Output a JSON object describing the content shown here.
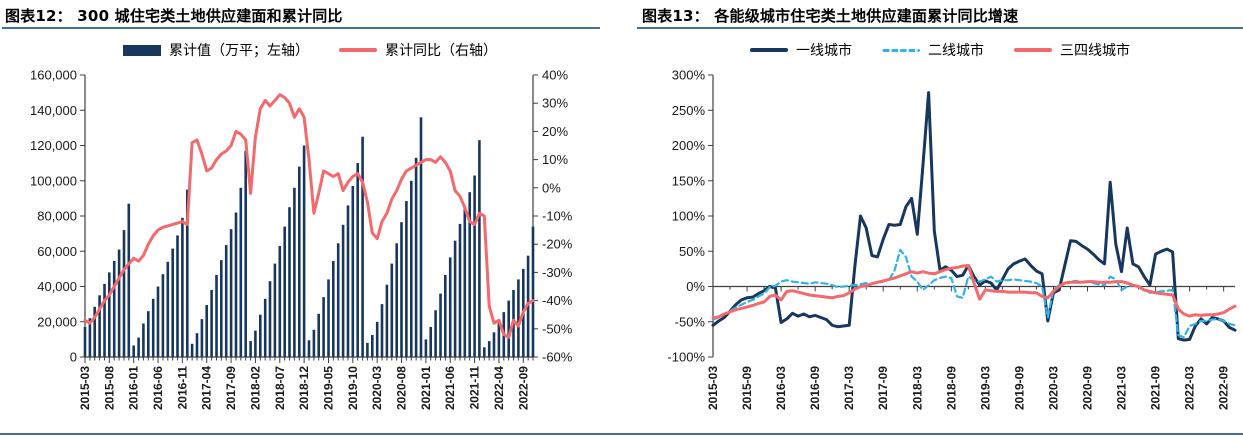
{
  "page": {
    "bottom_rule_color": "#41719c",
    "accent_rule_color": "#41719c"
  },
  "months": [
    "2015-03",
    "2015-04",
    "2015-05",
    "2015-06",
    "2015-07",
    "2015-08",
    "2015-09",
    "2015-10",
    "2015-11",
    "2015-12",
    "2016-01",
    "2016-02",
    "2016-03",
    "2016-04",
    "2016-05",
    "2016-06",
    "2016-07",
    "2016-08",
    "2016-09",
    "2016-10",
    "2016-11",
    "2016-12",
    "2017-01",
    "2017-02",
    "2017-03",
    "2017-04",
    "2017-05",
    "2017-06",
    "2017-07",
    "2017-08",
    "2017-09",
    "2017-10",
    "2017-11",
    "2017-12",
    "2018-01",
    "2018-02",
    "2018-03",
    "2018-04",
    "2018-05",
    "2018-06",
    "2018-07",
    "2018-08",
    "2018-09",
    "2018-10",
    "2018-11",
    "2018-12",
    "2019-01",
    "2019-02",
    "2019-03",
    "2019-04",
    "2019-05",
    "2019-06",
    "2019-07",
    "2019-08",
    "2019-09",
    "2019-10",
    "2019-11",
    "2019-12",
    "2020-01",
    "2020-02",
    "2020-03",
    "2020-04",
    "2020-05",
    "2020-06",
    "2020-07",
    "2020-08",
    "2020-09",
    "2020-10",
    "2020-11",
    "2020-12",
    "2021-01",
    "2021-02",
    "2021-03",
    "2021-04",
    "2021-05",
    "2021-06",
    "2021-07",
    "2021-08",
    "2021-09",
    "2021-10",
    "2021-11",
    "2021-12",
    "2022-01",
    "2022-02",
    "2022-03",
    "2022-04",
    "2022-05",
    "2022-06",
    "2022-07",
    "2022-08",
    "2022-09",
    "2022-10",
    "2022-11"
  ],
  "chart_data": [
    {
      "id": "c12",
      "type": "bar",
      "title": "图表12： 300 城住宅类土地供应建面和累计同比",
      "legend": [
        {
          "label": "累计值（万平；左轴）",
          "color": "#17375e",
          "marker": "rect"
        },
        {
          "label": "累计同比（右轴）",
          "color": "#f4696b",
          "marker": "line"
        }
      ],
      "x_label_step": 5,
      "left_axis": {
        "min": 0,
        "max": 160000,
        "step": 20000
      },
      "right_axis": {
        "min": -60,
        "max": 40,
        "step": 10,
        "unit": "%"
      },
      "bar_series": {
        "name": "累计值（万平；左轴）",
        "color": "#17375e",
        "values": [
          17000,
          22000,
          28500,
          35000,
          41500,
          48000,
          54500,
          61000,
          72000,
          87000,
          6500,
          11000,
          19000,
          26000,
          33000,
          40000,
          47000,
          54000,
          61500,
          69000,
          79000,
          95000,
          7500,
          13500,
          21500,
          29500,
          38000,
          46500,
          55000,
          63500,
          72500,
          82000,
          96000,
          117000,
          9000,
          15000,
          24000,
          33000,
          43000,
          53000,
          63000,
          74000,
          85000,
          96000,
          108000,
          120000,
          9500,
          15500,
          24500,
          34000,
          44000,
          54500,
          64500,
          75000,
          86000,
          97000,
          110000,
          125000,
          8000,
          12500,
          20000,
          30000,
          41000,
          53000,
          64500,
          76500,
          88500,
          100000,
          113000,
          136000,
          10000,
          17000,
          26500,
          36000,
          46500,
          56500,
          66000,
          75500,
          84500,
          93500,
          103000,
          123000,
          5500,
          9000,
          14000,
          19500,
          25500,
          32000,
          38000,
          44000,
          50000,
          57500,
          74000
        ]
      },
      "line_series": {
        "name": "累计同比（右轴）",
        "color": "#f4696b",
        "values": [
          -47,
          -48,
          -46,
          -43,
          -40,
          -38,
          -35,
          -32,
          -29,
          -27,
          -25,
          -26,
          -24,
          -20,
          -17,
          -15,
          -14,
          -13.5,
          -13,
          -12.5,
          -12,
          -13,
          16,
          17,
          12,
          6,
          7,
          10,
          12,
          13,
          15,
          20,
          19,
          17,
          -2,
          18,
          28,
          31,
          29,
          31,
          33,
          32,
          30,
          25,
          28,
          25,
          10,
          -9,
          -2,
          6,
          5,
          4,
          5,
          -1,
          2,
          4,
          5,
          2,
          -5,
          -16,
          -18,
          -12,
          -9,
          -4,
          -1,
          3,
          6,
          7,
          8,
          9,
          10,
          10,
          9,
          11,
          9,
          6,
          -1,
          -3,
          -7,
          -12,
          -13,
          -9,
          -10,
          -42,
          -48,
          -47,
          -52,
          -53,
          -47,
          -49,
          -44,
          -41,
          -40
        ]
      }
    },
    {
      "id": "c13",
      "type": "line",
      "title": "图表13： 各能级城市住宅类土地供应建面累计同比增速",
      "legend": [
        {
          "label": "一线城市",
          "color": "#17375e",
          "marker": "line"
        },
        {
          "label": "二线城市",
          "color": "#2fb3e8",
          "marker": "dashed-line"
        },
        {
          "label": "三四线城市",
          "color": "#f4696b",
          "marker": "line"
        }
      ],
      "x_label_step": 6,
      "y_axis": {
        "min": -100,
        "max": 300,
        "step": 50,
        "unit": "%"
      },
      "series": [
        {
          "name": "一线城市",
          "color": "#17375e",
          "dash": "",
          "width": 3,
          "values": [
            -55,
            -49,
            -44,
            -35,
            -26,
            -19,
            -16,
            -15,
            -10,
            -6,
            0,
            -2,
            -51,
            -46,
            -38,
            -42,
            -39,
            -43,
            -41,
            -44,
            -47,
            -55,
            -57,
            -56,
            -55,
            28,
            100,
            83,
            44,
            42,
            67,
            88,
            87,
            88,
            113,
            125,
            74,
            171,
            275,
            79,
            23,
            28,
            23,
            14,
            16,
            30,
            14,
            2,
            8,
            5,
            -5,
            10,
            25,
            32,
            36,
            39,
            30,
            22,
            18,
            -49,
            -9,
            -5,
            30,
            65,
            64,
            58,
            53,
            46,
            38,
            32,
            148,
            60,
            21,
            83,
            32,
            28,
            14,
            2,
            46,
            50,
            53,
            49,
            -74,
            -76,
            -75,
            -56,
            -46,
            -53,
            -44,
            -46,
            -49,
            -58,
            -62
          ]
        },
        {
          "name": "二线城市",
          "color": "#2fb3e8",
          "dash": "6,4",
          "width": 2.2,
          "values": [
            -47,
            -44,
            -39,
            -35,
            -30,
            -26,
            -22,
            -19,
            -14,
            -10,
            -1,
            1,
            7,
            9,
            7,
            6,
            5,
            4,
            6,
            5,
            4,
            2,
            -1,
            0,
            1,
            2,
            3,
            5,
            4,
            5,
            7,
            9,
            23,
            52,
            42,
            14,
            7,
            -5,
            2,
            9,
            12,
            14,
            12,
            -14,
            -16,
            14,
            9,
            7,
            10,
            14,
            7,
            9,
            9,
            10,
            9,
            8,
            7,
            5,
            0,
            -44,
            -5,
            2,
            5,
            7,
            8,
            6,
            7,
            5,
            3,
            2,
            14,
            10,
            -5,
            0,
            2,
            1,
            -5,
            -9,
            -8,
            -7,
            -6,
            -5,
            -69,
            -72,
            -56,
            -53,
            -49,
            -49,
            -47,
            -46,
            -49,
            -53,
            -55
          ]
        },
        {
          "name": "三四线城市",
          "color": "#f4696b",
          "dash": "",
          "width": 3,
          "values": [
            -45,
            -43,
            -39,
            -36,
            -33,
            -31,
            -29,
            -27,
            -24,
            -22,
            -14,
            -12,
            -19,
            -7,
            -6,
            -8,
            -10,
            -12,
            -13,
            -14,
            -15,
            -16,
            -14,
            -13,
            -9,
            -4,
            0,
            1,
            4,
            6,
            8,
            10,
            12,
            15,
            18,
            21,
            19,
            21,
            19,
            18,
            21,
            24,
            26,
            27,
            29,
            30,
            5,
            -18,
            -5,
            -6,
            -7,
            -7,
            -8,
            -8,
            -8,
            -8,
            -9,
            -9,
            -14,
            -16,
            -7,
            0,
            5,
            6,
            6,
            6,
            7,
            7,
            6,
            6,
            6,
            7,
            7,
            5,
            2,
            0,
            -5,
            -7,
            -9,
            -10,
            -11,
            -12,
            -32,
            -39,
            -42,
            -40,
            -41,
            -40,
            -40,
            -39,
            -37,
            -32,
            -28
          ]
        }
      ]
    }
  ]
}
